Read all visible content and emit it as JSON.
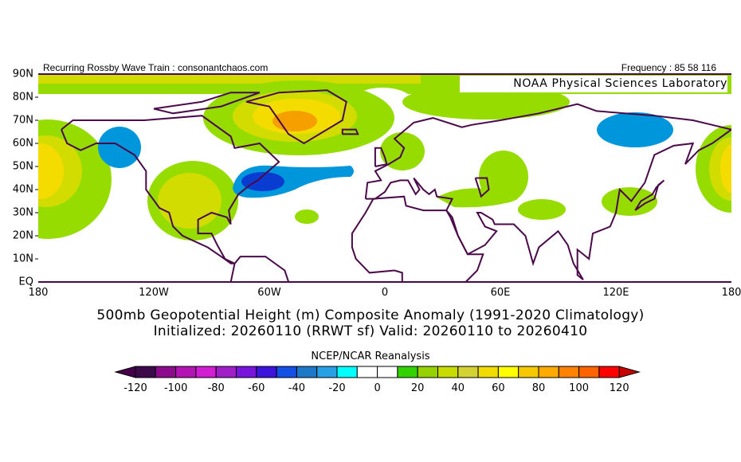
{
  "header": {
    "left_text": "Recurring Rossby Wave Train : consonantchaos.com",
    "right_text": "Frequency : 85 58 116",
    "lab_label": "NOAA Physical Sciences Laboratory"
  },
  "map": {
    "lat_labels": [
      "90N",
      "80N",
      "70N",
      "60N",
      "50N",
      "40N",
      "30N",
      "20N",
      "10N",
      "EQ"
    ],
    "lon_labels": [
      "180",
      "120W",
      "60W",
      "0",
      "60E",
      "120E",
      "180"
    ],
    "anomaly_colors": {
      "green": "#96dc00",
      "yellowgreen": "#d2dc00",
      "yellow": "#f5dc00",
      "orange": "#f5a000",
      "blue": "#0096dc",
      "darkblue": "#0a3cd2"
    },
    "coast_color": "#4a0a4a"
  },
  "titles": {
    "line1": "500mb Geopotential Height (m) Composite Anomaly (1991-2020 Climatology)",
    "line2": "Initialized: 20260110 (RRWT sf) Valid: 20260110 to 20260410",
    "source": "NCEP/NCAR Reanalysis"
  },
  "colorbar": {
    "labels": [
      "-120",
      "-100",
      "-80",
      "-60",
      "-40",
      "-20",
      "0",
      "20",
      "40",
      "60",
      "80",
      "100",
      "120"
    ],
    "min": -120,
    "max": 120,
    "step": 10,
    "colors": [
      "#3c0a4a",
      "#8c0a8c",
      "#b414b4",
      "#d21ed2",
      "#a01ec8",
      "#7814dc",
      "#3c14dc",
      "#1450e6",
      "#1e78c8",
      "#28a0e6",
      "#00ffff",
      "#ffffff",
      "#ffffff",
      "#32d200",
      "#96d200",
      "#c8dc00",
      "#d2d232",
      "#f0dc00",
      "#ffff00",
      "#f5c800",
      "#ffaa00",
      "#ff8200",
      "#ff6400",
      "#ff0000"
    ],
    "under_color": "#46004b",
    "over_color": "#c80000"
  }
}
